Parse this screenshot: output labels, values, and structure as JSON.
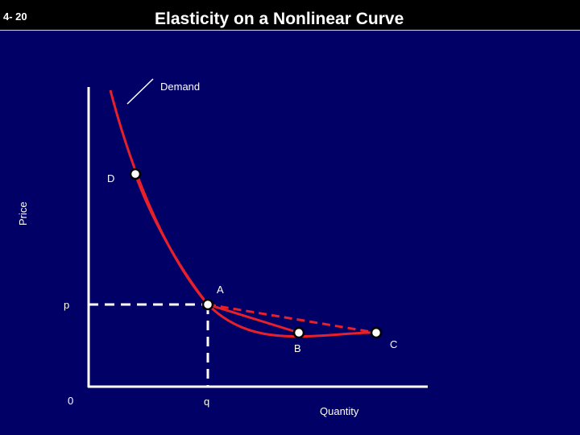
{
  "slide": {
    "number": "4- 20",
    "title": "Elasticity on a Nonlinear Curve"
  },
  "axes": {
    "y_label": "Price",
    "x_label": "Quantity",
    "origin_label": "0"
  },
  "labels": {
    "demand": "Demand",
    "point_d": "D",
    "point_a": "A",
    "point_b": "B",
    "point_c": "C",
    "price_p": "p",
    "quantity_q": "q"
  },
  "colors": {
    "background": "#000066",
    "curve": "#e8202a",
    "axis": "#ffffff",
    "guide": "#ffffff"
  }
}
